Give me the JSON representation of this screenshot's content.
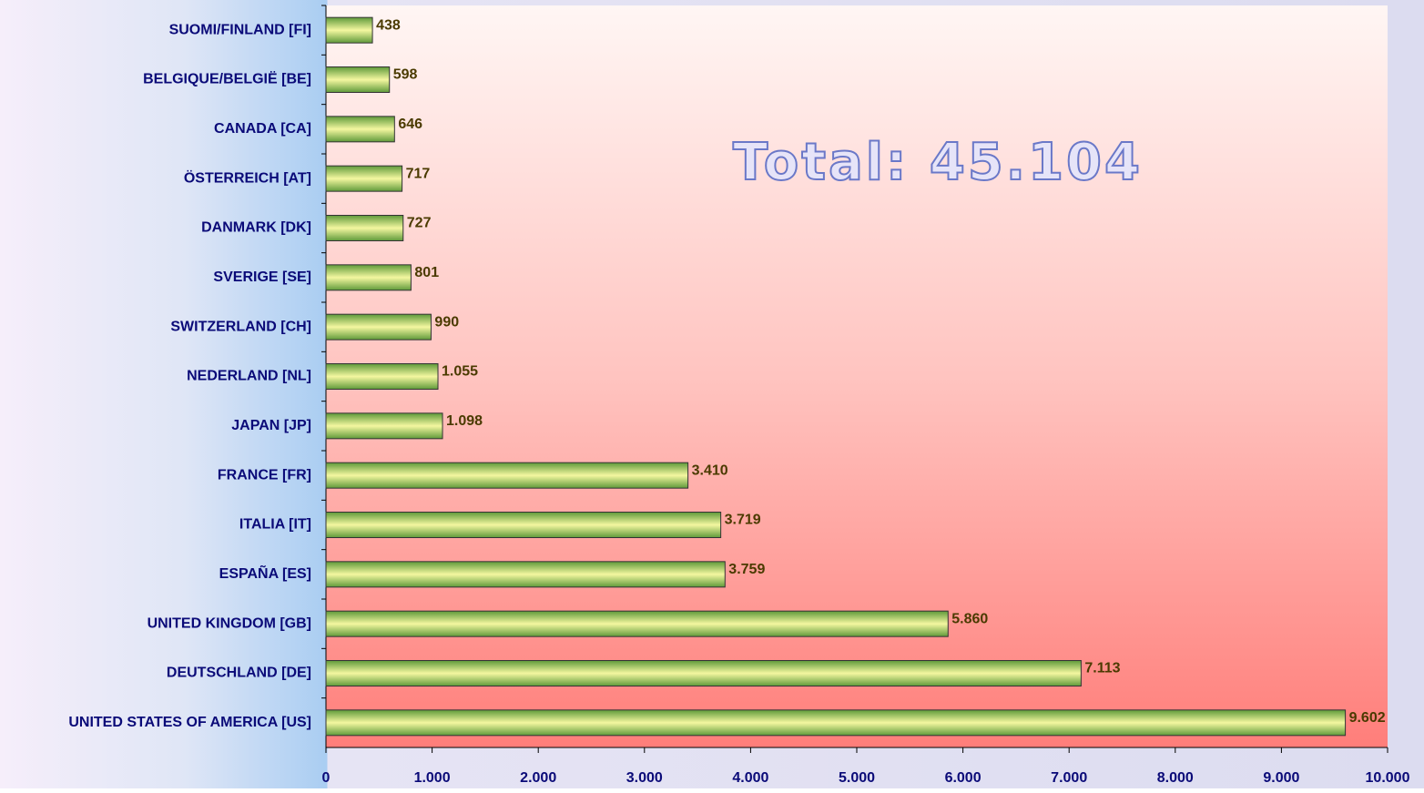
{
  "chart_data": {
    "type": "bar",
    "orientation": "horizontal",
    "annotation": "Total: 45.104",
    "categories": [
      "SUOMI/FINLAND [FI]",
      "BELGIQUE/BELGIË [BE]",
      "CANADA [CA]",
      "ÖSTERREICH [AT]",
      "DANMARK [DK]",
      "SVERIGE [SE]",
      "SWITZERLAND [CH]",
      "NEDERLAND [NL]",
      "JAPAN [JP]",
      "FRANCE [FR]",
      "ITALIA [IT]",
      "ESPAÑA [ES]",
      "UNITED KINGDOM [GB]",
      "DEUTSCHLAND [DE]",
      "UNITED STATES OF AMERICA [US]"
    ],
    "values": [
      438,
      598,
      646,
      717,
      727,
      801,
      990,
      1055,
      1098,
      3410,
      3719,
      3759,
      5860,
      7113,
      9602
    ],
    "value_labels": [
      "438",
      "598",
      "646",
      "717",
      "727",
      "801",
      "990",
      "1.055",
      "1.098",
      "3.410",
      "3.719",
      "3.759",
      "5.860",
      "7.113",
      "9.602"
    ],
    "color": "#f4f7a0",
    "xlim": [
      0,
      10000
    ],
    "xticks": [
      0,
      {
        "value": 1000,
        "label": "1.000"
      },
      {
        "value": 2000,
        "label": "2.000"
      },
      {
        "value": 3000,
        "label": "3.000"
      },
      {
        "value": 4000,
        "label": "4.000"
      },
      {
        "value": 5000,
        "label": "5.000"
      },
      {
        "value": 6000,
        "label": "6.000"
      },
      {
        "value": 7000,
        "label": "7.000"
      },
      {
        "value": 8000,
        "label": "8.000"
      },
      {
        "value": 9000,
        "label": "9.000"
      },
      {
        "value": 10000,
        "label": "10.000"
      }
    ],
    "grid": false
  }
}
